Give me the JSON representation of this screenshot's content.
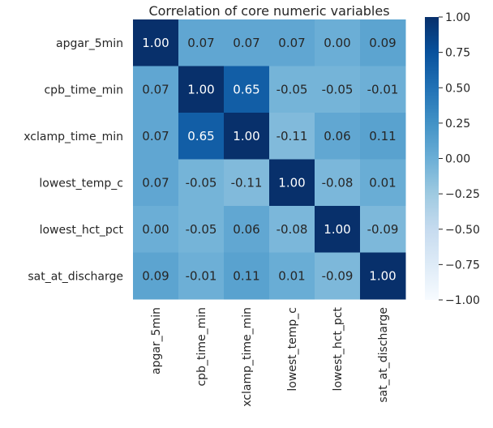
{
  "chart_data": {
    "type": "heatmap",
    "title": "Correlation of core numeric variables",
    "xlabel": "",
    "ylabel": "",
    "row_labels": [
      "apgar_5min",
      "cpb_time_min",
      "xclamp_time_min",
      "lowest_temp_c",
      "lowest_hct_pct",
      "sat_at_discharge"
    ],
    "col_labels": [
      "apgar_5min",
      "cpb_time_min",
      "xclamp_time_min",
      "lowest_temp_c",
      "lowest_hct_pct",
      "sat_at_discharge"
    ],
    "values": [
      [
        1.0,
        0.07,
        0.07,
        0.07,
        0.0,
        0.09
      ],
      [
        0.07,
        1.0,
        0.65,
        -0.05,
        -0.05,
        -0.01
      ],
      [
        0.07,
        0.65,
        1.0,
        -0.11,
        0.06,
        0.11
      ],
      [
        0.07,
        -0.05,
        -0.11,
        1.0,
        -0.08,
        0.01
      ],
      [
        0.0,
        -0.05,
        0.06,
        -0.08,
        1.0,
        -0.09
      ],
      [
        0.09,
        -0.01,
        0.11,
        0.01,
        -0.09,
        1.0
      ]
    ],
    "value_labels": [
      [
        "1.00",
        "0.07",
        "0.07",
        "0.07",
        "0.00",
        "0.09"
      ],
      [
        "0.07",
        "1.00",
        "0.65",
        "-0.05",
        "-0.05",
        "-0.01"
      ],
      [
        "0.07",
        "0.65",
        "1.00",
        "-0.11",
        "0.06",
        "0.11"
      ],
      [
        "0.07",
        "-0.05",
        "-0.11",
        "1.00",
        "-0.08",
        "0.01"
      ],
      [
        "0.00",
        "-0.05",
        "0.06",
        "-0.08",
        "1.00",
        "-0.09"
      ],
      [
        "0.09",
        "-0.01",
        "0.11",
        "0.01",
        "-0.09",
        "1.00"
      ]
    ],
    "colormap": "Blues",
    "color_range": [
      -1.0,
      1.0
    ],
    "colorbar_ticks": [
      1.0,
      0.75,
      0.5,
      0.25,
      0.0,
      -0.25,
      -0.5,
      -0.75,
      -1.0
    ],
    "colorbar_tick_labels": [
      "1.00",
      "0.75",
      "0.50",
      "0.25",
      "0.00",
      "−0.25",
      "−0.50",
      "−0.75",
      "−1.00"
    ],
    "annotation_text_color_dark_bg": "#ffffff",
    "annotation_text_color_light_bg": "#262626",
    "colormap_stops": [
      "#f7fbff",
      "#deebf7",
      "#c6dbef",
      "#9ecae1",
      "#6baed6",
      "#4292c6",
      "#2171b5",
      "#08519c",
      "#08306b"
    ]
  }
}
